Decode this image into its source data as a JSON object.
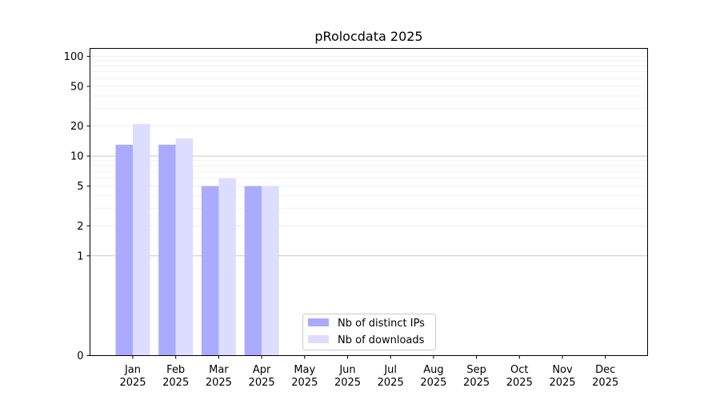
{
  "chart_data": {
    "type": "bar",
    "title": "pRolocdata 2025",
    "xlabel": "",
    "ylabel": "",
    "y_scale": "symlog",
    "ylim": [
      0,
      120
    ],
    "y_ticks": [
      0,
      1,
      2,
      5,
      10,
      20,
      50,
      100
    ],
    "grid": "horizontal",
    "legend_position": "bottom-center",
    "categories": [
      {
        "month": "Jan",
        "year": "2025"
      },
      {
        "month": "Feb",
        "year": "2025"
      },
      {
        "month": "Mar",
        "year": "2025"
      },
      {
        "month": "Apr",
        "year": "2025"
      },
      {
        "month": "May",
        "year": "2025"
      },
      {
        "month": "Jun",
        "year": "2025"
      },
      {
        "month": "Jul",
        "year": "2025"
      },
      {
        "month": "Aug",
        "year": "2025"
      },
      {
        "month": "Sep",
        "year": "2025"
      },
      {
        "month": "Oct",
        "year": "2025"
      },
      {
        "month": "Nov",
        "year": "2025"
      },
      {
        "month": "Dec",
        "year": "2025"
      }
    ],
    "series": [
      {
        "name": "Nb of distinct IPs",
        "color": "#aaaaff",
        "values": [
          13,
          13,
          5,
          5,
          0,
          0,
          0,
          0,
          0,
          0,
          0,
          0
        ]
      },
      {
        "name": "Nb of downloads",
        "color": "#ddddff",
        "values": [
          21,
          15,
          6,
          5,
          0,
          0,
          0,
          0,
          0,
          0,
          0,
          0
        ]
      }
    ]
  }
}
